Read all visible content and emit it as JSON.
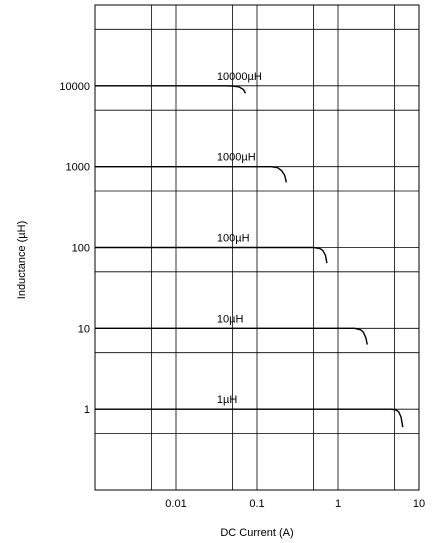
{
  "chart_data": {
    "type": "line",
    "title": "",
    "xlabel": "DC Current (A)",
    "ylabel": "Inductance (µH)",
    "xscale": "log",
    "yscale": "log",
    "xlim": [
      0.001,
      10
    ],
    "ylim": [
      0.1,
      100000
    ],
    "grid": true,
    "x_ticks": [
      {
        "value": 0.01,
        "label": "0.01"
      },
      {
        "value": 0.1,
        "label": "0.1"
      },
      {
        "value": 1,
        "label": "1"
      },
      {
        "value": 10,
        "label": "10"
      }
    ],
    "y_ticks": [
      {
        "value": 1,
        "label": "1"
      },
      {
        "value": 10,
        "label": "10"
      },
      {
        "value": 100,
        "label": "100"
      },
      {
        "value": 1000,
        "label": "1000"
      },
      {
        "value": 10000,
        "label": "10000"
      }
    ],
    "x_gridlines": [
      0.005,
      0.01,
      0.05,
      0.1,
      0.5,
      1,
      5
    ],
    "y_gridlines": [
      0.5,
      1,
      5,
      10,
      50,
      100,
      500,
      1000,
      5000,
      10000,
      50000
    ],
    "series": [
      {
        "name": "10000µH",
        "label_at": [
          0.032,
          10000
        ],
        "x": [
          0.001,
          0.04,
          0.05,
          0.06,
          0.068,
          0.072
        ],
        "y": [
          10000,
          10000,
          9950,
          9700,
          9000,
          8100
        ]
      },
      {
        "name": "1000µH",
        "label_at": [
          0.032,
          1000
        ],
        "x": [
          0.001,
          0.15,
          0.18,
          0.2,
          0.22,
          0.23
        ],
        "y": [
          1000,
          1000,
          970,
          900,
          780,
          640
        ]
      },
      {
        "name": "100µH",
        "label_at": [
          0.032,
          100
        ],
        "x": [
          0.001,
          0.5,
          0.6,
          0.65,
          0.7,
          0.73
        ],
        "y": [
          100,
          100,
          97,
          92,
          80,
          64
        ]
      },
      {
        "name": "10µH",
        "label_at": [
          0.032,
          10
        ],
        "x": [
          0.001,
          1.6,
          1.9,
          2.05,
          2.2,
          2.3
        ],
        "y": [
          10,
          10,
          9.6,
          9.0,
          7.7,
          6.3
        ]
      },
      {
        "name": "1µH",
        "label_at": [
          0.032,
          1
        ],
        "x": [
          0.001,
          4.5,
          5.2,
          5.6,
          6.0,
          6.3
        ],
        "y": [
          1,
          1,
          0.98,
          0.93,
          0.8,
          0.6
        ]
      }
    ]
  }
}
